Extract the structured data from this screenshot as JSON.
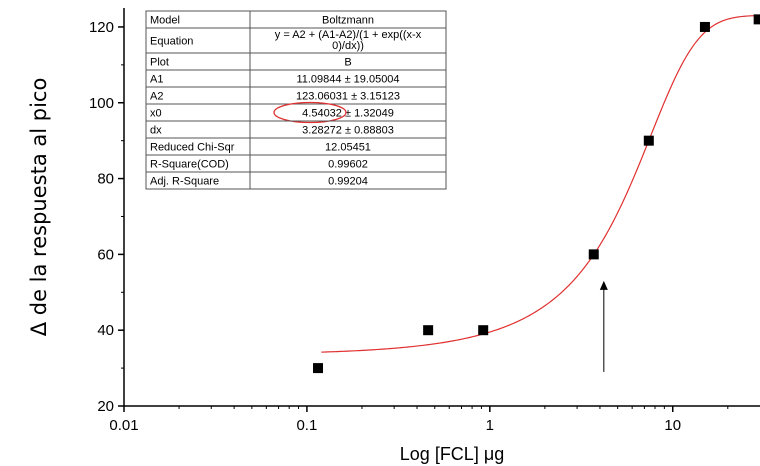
{
  "chart_data": {
    "type": "scatter",
    "xlabel": "Log [FCL] μg",
    "ylabel": "Δ de la respuesta al pico",
    "x_scale": "log",
    "xlim": [
      0.01,
      30
    ],
    "ylim": [
      20,
      125
    ],
    "x_ticks": [
      {
        "value": 0.01,
        "label": "0.01"
      },
      {
        "value": 0.1,
        "label": "0.1"
      },
      {
        "value": 1,
        "label": "1"
      },
      {
        "value": 10,
        "label": "10"
      }
    ],
    "y_ticks": [
      {
        "value": 20,
        "label": "20"
      },
      {
        "value": 40,
        "label": "40"
      },
      {
        "value": 60,
        "label": "60"
      },
      {
        "value": 80,
        "label": "80"
      },
      {
        "value": 100,
        "label": "100"
      },
      {
        "value": 120,
        "label": "120"
      }
    ],
    "points": [
      {
        "x": 0.115,
        "y": 30
      },
      {
        "x": 0.46,
        "y": 40
      },
      {
        "x": 0.92,
        "y": 40
      },
      {
        "x": 3.7,
        "y": 60
      },
      {
        "x": 7.4,
        "y": 90
      },
      {
        "x": 15,
        "y": 120
      },
      {
        "x": 29.5,
        "y": 122
      }
    ],
    "fit": {
      "model": "Boltzmann",
      "A1": 11.09844,
      "A2": 123.06031,
      "x0": 4.54032,
      "dx": 3.28272,
      "x_range": [
        0.12,
        30
      ],
      "color": "#e03030"
    },
    "annotation_arrow": {
      "x": 4.2,
      "y_from": 29,
      "y_to": 53
    },
    "highlight_cell": "x0",
    "grid": false,
    "marker_color": "#000000",
    "fit_table": {
      "rows": [
        {
          "name": "Model",
          "value": "Boltzmann"
        },
        {
          "name": "Equation",
          "value": "y = A2 + (A1-A2)/(1 + exp((x-x",
          "value2": "0)/dx))"
        },
        {
          "name": "Plot",
          "value": "B"
        },
        {
          "name": "A1",
          "value": "11.09844 ± 19.05004"
        },
        {
          "name": "A2",
          "value": "123.06031 ± 3.15123"
        },
        {
          "name": "x0",
          "value": "4.54032 ± 1.32049"
        },
        {
          "name": "dx",
          "value": "3.28272 ± 0.88803"
        },
        {
          "name": "Reduced Chi-Sqr",
          "value": "12.05451"
        },
        {
          "name": "R-Square(COD)",
          "value": "0.99602"
        },
        {
          "name": "Adj. R-Square",
          "value": "0.99204"
        }
      ]
    }
  }
}
